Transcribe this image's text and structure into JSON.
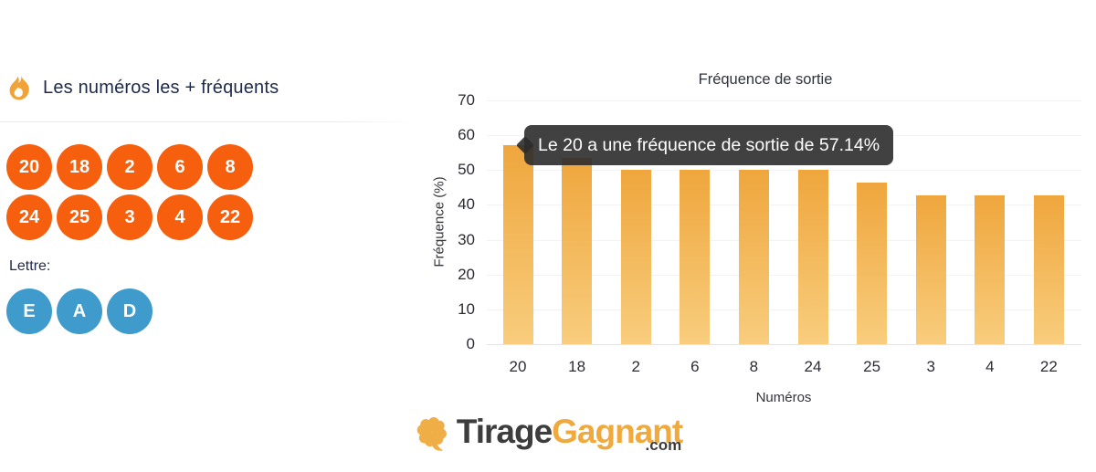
{
  "left_panel": {
    "title": "Les numéros les + fréquents",
    "numbers": [
      "20",
      "18",
      "2",
      "6",
      "8",
      "24",
      "25",
      "3",
      "4",
      "22"
    ],
    "lettre_label": "Lettre:",
    "letters": [
      "E",
      "A",
      "D"
    ],
    "number_ball_color": "#f55f0e",
    "letter_ball_color": "#3e9bcb",
    "title_color": "#1e2a4a"
  },
  "chart_data": {
    "type": "bar",
    "title": "Fréquence de sortie",
    "categories": [
      "20",
      "18",
      "2",
      "6",
      "8",
      "24",
      "25",
      "3",
      "4",
      "22"
    ],
    "values": [
      57.14,
      53.57,
      50,
      50,
      50,
      50,
      46.43,
      42.86,
      42.86,
      42.86
    ],
    "xlabel": "Numéros",
    "ylabel": "Fréquence (%)",
    "ylim": [
      0,
      70
    ],
    "yticks": [
      0,
      10,
      20,
      30,
      40,
      50,
      60,
      70
    ],
    "grid": true,
    "legend": false,
    "bar_color_top": "#efa63d",
    "bar_color_bottom": "#f8cd7d",
    "tooltip": {
      "text": "Le 20 a une fréquence de sortie de 57.14%",
      "target_category": "20",
      "bg": "#2c2c2c"
    }
  },
  "logo": {
    "part1": "Tirage",
    "part2": "Gagnant",
    "tld": ".com",
    "clover_color": "#f0ae47",
    "dark_color": "#3d3d3d",
    "amber_color": "#f0a93c"
  },
  "icons": {
    "flame_color": "#f2a338"
  }
}
